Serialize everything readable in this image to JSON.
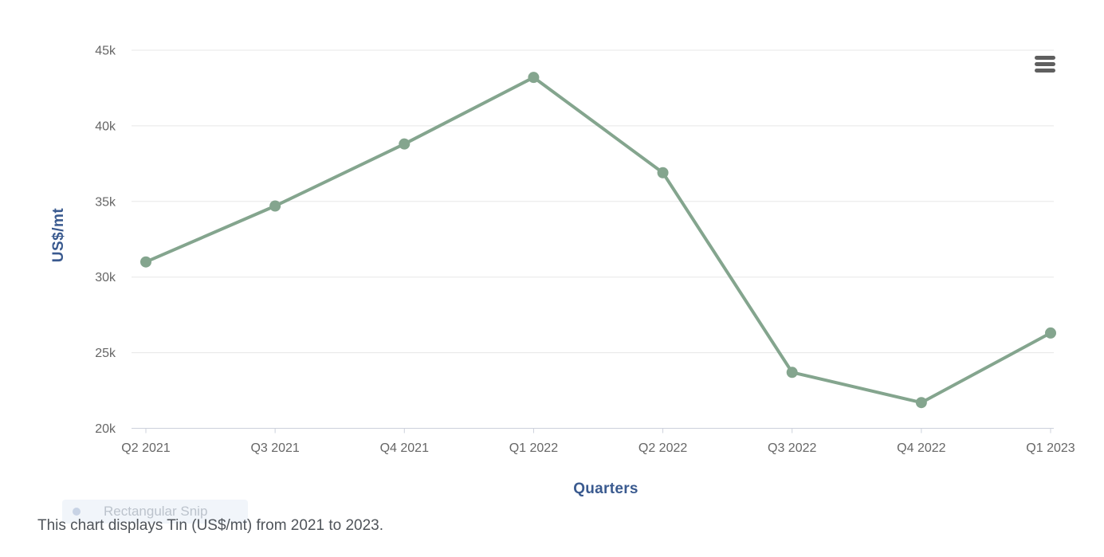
{
  "chart_data": {
    "type": "line",
    "categories": [
      "Q2 2021",
      "Q3 2021",
      "Q4 2021",
      "Q1 2022",
      "Q2 2022",
      "Q3 2022",
      "Q4 2022",
      "Q1 2023"
    ],
    "series": [
      {
        "name": "Tin",
        "values": [
          31000,
          34700,
          38800,
          43200,
          36900,
          23700,
          21700,
          26300
        ]
      }
    ],
    "xlabel": "Quarters",
    "ylabel": "US$/mt",
    "ylim": [
      20000,
      45000
    ],
    "ytick_step": 5000,
    "ytick_labels": [
      "20k",
      "25k",
      "30k",
      "35k",
      "40k",
      "45k"
    ],
    "grid": true,
    "legend": "none",
    "line_color": "#84a58e",
    "marker": "circle"
  },
  "caption": "This chart displays Tin (US$/mt) from 2021 to 2023.",
  "context_menu": {
    "icon": "hamburger-menu-icon"
  },
  "ghost_overlay": {
    "label": "Rectangular Snip"
  },
  "colors": {
    "axis_title": "#3a5a8f",
    "tick_label": "#666666",
    "grid": "#e7e7e7",
    "axis_line": "#ccd1db",
    "caption": "#4f545a",
    "line": "#84a58e"
  }
}
